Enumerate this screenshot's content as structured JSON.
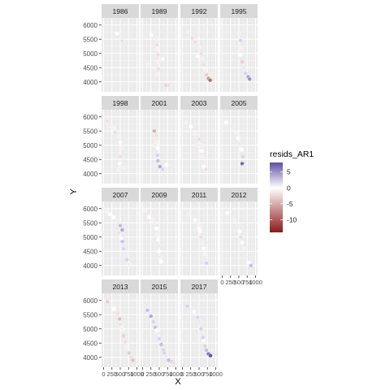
{
  "chart_data": {
    "type": "scatter",
    "layout": "facet_wrap",
    "xlabel": "X",
    "ylabel": "Y",
    "x_tick_labels": [
      "0",
      "250",
      "500",
      "750",
      "1000"
    ],
    "x_ticks": [
      0,
      250,
      500,
      750,
      1000
    ],
    "xlim": [
      -60,
      1060
    ],
    "y_ticks": [
      4000,
      4500,
      5000,
      5500,
      6000
    ],
    "ylim": [
      3650,
      6250
    ],
    "grid": true,
    "panel_background": "#ebebeb",
    "strip_background": "#d9d9d9",
    "legend": {
      "title": "resids_AR1",
      "position": "right",
      "breaks": [
        5,
        0,
        -5,
        -10
      ],
      "limits": [
        -14,
        8
      ],
      "low_color": "#8b1a1a",
      "mid_color": "#ffffff",
      "high_color": "#5e4fa2"
    },
    "panels": [
      {
        "label": "1986",
        "points": [
          [
            560,
            5430,
            -2
          ],
          [
            620,
            5360,
            1
          ],
          [
            400,
            5700,
            0
          ]
        ]
      },
      {
        "label": "1989",
        "points": [
          [
            260,
            5650,
            0
          ],
          [
            420,
            5500,
            -1
          ],
          [
            430,
            5300,
            -2
          ],
          [
            440,
            5150,
            -1
          ],
          [
            460,
            4950,
            -2
          ],
          [
            480,
            4700,
            -1
          ],
          [
            470,
            4450,
            -2
          ],
          [
            440,
            4250,
            -1
          ],
          [
            700,
            3880,
            -3
          ],
          [
            780,
            3880,
            -2
          ],
          [
            150,
            4600,
            -1
          ],
          [
            600,
            4800,
            0
          ]
        ]
      },
      {
        "label": "1992",
        "points": [
          [
            200,
            5750,
            -1
          ],
          [
            300,
            5550,
            -2
          ],
          [
            380,
            5400,
            -2
          ],
          [
            500,
            5200,
            -1
          ],
          [
            560,
            5000,
            -2
          ],
          [
            600,
            4800,
            -1
          ],
          [
            640,
            4600,
            -2
          ],
          [
            680,
            4420,
            -1
          ],
          [
            720,
            4250,
            -3
          ],
          [
            780,
            4120,
            -6
          ],
          [
            830,
            4060,
            -9
          ],
          [
            460,
            4900,
            0
          ]
        ]
      },
      {
        "label": "1995",
        "points": [
          [
            500,
            5700,
            -1
          ],
          [
            550,
            5450,
            2
          ],
          [
            560,
            5200,
            -1
          ],
          [
            540,
            4950,
            0
          ],
          [
            600,
            4700,
            -3
          ],
          [
            640,
            4500,
            1
          ],
          [
            700,
            4300,
            2
          ],
          [
            780,
            4180,
            4
          ],
          [
            820,
            4100,
            5
          ]
        ]
      },
      {
        "label": "1998",
        "points": [
          [
            120,
            5850,
            -2
          ],
          [
            250,
            5650,
            -1
          ],
          [
            350,
            5450,
            -2
          ],
          [
            450,
            5300,
            -1
          ],
          [
            500,
            5100,
            0
          ],
          [
            520,
            4900,
            -1
          ],
          [
            500,
            4600,
            -2
          ],
          [
            480,
            4350,
            0
          ],
          [
            460,
            4150,
            -1
          ],
          [
            620,
            4200,
            -1
          ],
          [
            300,
            5600,
            -1
          ]
        ]
      },
      {
        "label": "2001",
        "points": [
          [
            350,
            5500,
            -5
          ],
          [
            420,
            5350,
            -2
          ],
          [
            440,
            5100,
            -1
          ],
          [
            460,
            4900,
            0
          ],
          [
            450,
            4650,
            2
          ],
          [
            460,
            4450,
            3
          ],
          [
            520,
            4250,
            4
          ],
          [
            600,
            4150,
            2
          ],
          [
            380,
            5000,
            -1
          ],
          [
            720,
            4300,
            0
          ]
        ]
      },
      {
        "label": "2003",
        "points": [
          [
            100,
            5800,
            -1
          ],
          [
            250,
            5650,
            0
          ],
          [
            380,
            5400,
            -1
          ],
          [
            500,
            5200,
            -2
          ],
          [
            560,
            5000,
            -1
          ],
          [
            580,
            4800,
            0
          ],
          [
            600,
            4600,
            -1
          ],
          [
            620,
            4400,
            1
          ],
          [
            640,
            4250,
            0
          ],
          [
            700,
            4150,
            -2
          ],
          [
            450,
            5000,
            -1
          ]
        ]
      },
      {
        "label": "2005",
        "points": [
          [
            120,
            5800,
            0
          ],
          [
            300,
            5650,
            1
          ],
          [
            420,
            5450,
            -1
          ],
          [
            480,
            5250,
            0
          ],
          [
            520,
            5050,
            1
          ],
          [
            580,
            4850,
            0
          ],
          [
            620,
            4600,
            2
          ],
          [
            600,
            4350,
            7
          ],
          [
            650,
            4250,
            1
          ]
        ]
      },
      {
        "label": "2007",
        "points": [
          [
            100,
            5900,
            -1
          ],
          [
            300,
            5700,
            0
          ],
          [
            420,
            5550,
            1
          ],
          [
            500,
            5400,
            3
          ],
          [
            560,
            5250,
            4
          ],
          [
            600,
            5050,
            1
          ],
          [
            560,
            4850,
            3
          ],
          [
            600,
            4600,
            2
          ],
          [
            650,
            4400,
            1
          ],
          [
            700,
            4200,
            2
          ],
          [
            760,
            4050,
            -1
          ],
          [
            200,
            5800,
            0
          ],
          [
            450,
            5150,
            -2
          ],
          [
            520,
            4950,
            0
          ],
          [
            640,
            4700,
            1
          ]
        ]
      },
      {
        "label": "2009",
        "points": [
          [
            60,
            5950,
            -1
          ],
          [
            200,
            5700,
            0
          ],
          [
            350,
            5500,
            -1
          ],
          [
            420,
            5300,
            0
          ],
          [
            460,
            5100,
            -1
          ],
          [
            470,
            4900,
            0
          ],
          [
            480,
            4700,
            1
          ],
          [
            500,
            4500,
            0
          ],
          [
            530,
            4300,
            -1
          ],
          [
            560,
            4150,
            0
          ],
          [
            300,
            5600,
            -1
          ]
        ]
      },
      {
        "label": "2011",
        "points": [
          [
            200,
            5800,
            -1
          ],
          [
            380,
            5600,
            0
          ],
          [
            480,
            5400,
            -1
          ],
          [
            520,
            5200,
            0
          ],
          [
            560,
            5000,
            -2
          ],
          [
            600,
            4800,
            -1
          ],
          [
            640,
            4600,
            0
          ],
          [
            660,
            4400,
            -1
          ],
          [
            690,
            4200,
            1
          ],
          [
            720,
            4080,
            2
          ],
          [
            500,
            5300,
            0
          ]
        ]
      },
      {
        "label": "2012",
        "points": [
          [
            150,
            5850,
            0
          ],
          [
            380,
            5600,
            -1
          ],
          [
            480,
            5400,
            1
          ],
          [
            520,
            5200,
            0
          ],
          [
            560,
            5000,
            -2
          ],
          [
            600,
            4800,
            0
          ],
          [
            640,
            4600,
            -1
          ],
          [
            700,
            4300,
            1
          ],
          [
            800,
            4100,
            0
          ],
          [
            860,
            4000,
            3
          ]
        ]
      },
      {
        "label": "2013",
        "points": [
          [
            120,
            5950,
            -3
          ],
          [
            280,
            5800,
            -1
          ],
          [
            420,
            5550,
            -2
          ],
          [
            480,
            5350,
            -4
          ],
          [
            500,
            5150,
            -2
          ],
          [
            560,
            4950,
            -1
          ],
          [
            600,
            4750,
            -3
          ],
          [
            640,
            4550,
            -2
          ],
          [
            700,
            4350,
            -1
          ],
          [
            760,
            4150,
            -3
          ],
          [
            820,
            4000,
            -2
          ],
          [
            880,
            3900,
            -4
          ],
          [
            300,
            5700,
            0
          ],
          [
            540,
            5050,
            -1
          ]
        ]
      },
      {
        "label": "2015",
        "points": [
          [
            60,
            5780,
            1
          ],
          [
            150,
            5650,
            3
          ],
          [
            250,
            5450,
            4
          ],
          [
            320,
            5250,
            2
          ],
          [
            380,
            5050,
            3
          ],
          [
            450,
            4850,
            1
          ],
          [
            500,
            4650,
            2
          ],
          [
            560,
            4450,
            3
          ],
          [
            620,
            4250,
            2
          ],
          [
            700,
            4050,
            1
          ],
          [
            780,
            3900,
            3
          ],
          [
            880,
            3850,
            2
          ],
          [
            940,
            3800,
            -2
          ],
          [
            420,
            4950,
            0
          ],
          [
            660,
            4150,
            2
          ],
          [
            200,
            5550,
            1
          ]
        ]
      },
      {
        "label": "2017",
        "points": [
          [
            150,
            5800,
            2
          ],
          [
            350,
            5600,
            0
          ],
          [
            460,
            5400,
            2
          ],
          [
            520,
            5200,
            1
          ],
          [
            560,
            5000,
            2
          ],
          [
            600,
            4800,
            1
          ],
          [
            640,
            4600,
            0
          ],
          [
            680,
            4400,
            2
          ],
          [
            720,
            4250,
            3
          ],
          [
            780,
            4120,
            6
          ],
          [
            840,
            4060,
            8
          ],
          [
            500,
            5300,
            1
          ],
          [
            620,
            4700,
            2
          ]
        ]
      }
    ]
  }
}
